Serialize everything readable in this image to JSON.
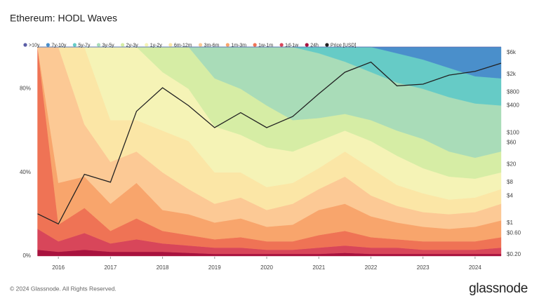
{
  "chart_data": {
    "type": "stacked_area",
    "title": "Ethereum: HODL Waves",
    "x": [
      2015.6,
      2016.0,
      2016.5,
      2017.0,
      2017.5,
      2018.0,
      2018.5,
      2019.0,
      2019.5,
      2020.0,
      2020.5,
      2021.0,
      2021.5,
      2022.0,
      2022.5,
      2023.0,
      2023.5,
      2024.0,
      2024.5
    ],
    "xlim": [
      2015.58,
      2024.5
    ],
    "xticks": [
      2016,
      2017,
      2018,
      2019,
      2020,
      2021,
      2022,
      2023,
      2024
    ],
    "ylim": [
      0,
      100
    ],
    "yticks": [
      {
        "value": 0,
        "label": "0%"
      },
      {
        "value": 40,
        "label": "40%"
      },
      {
        "value": 80,
        "label": "80%"
      }
    ],
    "y2scale": "log",
    "y2lim": [
      0.185,
      8000
    ],
    "y2ticks": [
      {
        "value": 0.2,
        "label": "$0.20"
      },
      {
        "value": 0.6,
        "label": "$0.60"
      },
      {
        "value": 1,
        "label": "$1"
      },
      {
        "value": 4,
        "label": "$4"
      },
      {
        "value": 8,
        "label": "$8"
      },
      {
        "value": 20,
        "label": "$20"
      },
      {
        "value": 60,
        "label": "$60"
      },
      {
        "value": 100,
        "label": "$100"
      },
      {
        "value": 400,
        "label": "$400"
      },
      {
        "value": 800,
        "label": "$800"
      },
      {
        "value": 2000,
        "label": "$2k"
      },
      {
        "value": 6000,
        "label": "$6k"
      }
    ],
    "series": [
      {
        "name": ">10y",
        "color": "#5b5ea6",
        "values": [
          0,
          0,
          0,
          0,
          0,
          0,
          0,
          0,
          0,
          0,
          0,
          0,
          0,
          0,
          0,
          0,
          0,
          0,
          0
        ]
      },
      {
        "name": "7y-10y",
        "color": "#4a8fcb",
        "values": [
          0,
          0,
          0,
          0,
          0,
          0,
          0,
          0,
          0,
          0,
          0,
          0,
          0,
          0,
          3,
          6,
          10,
          14,
          15
        ]
      },
      {
        "name": "5y-7y",
        "color": "#66cbc6",
        "values": [
          0,
          0,
          0,
          0,
          0,
          0,
          0,
          0,
          0,
          0,
          0,
          3,
          7,
          12,
          14,
          14,
          14,
          13,
          13
        ]
      },
      {
        "name": "3y-5y",
        "color": "#a9dcb8",
        "values": [
          0,
          0,
          0,
          0,
          0,
          0,
          0,
          15,
          20,
          28,
          35,
          31,
          25,
          23,
          23,
          24,
          26,
          26,
          22
        ]
      },
      {
        "name": "2y-3y",
        "color": "#d6eda5",
        "values": [
          0,
          0,
          0,
          0,
          0,
          12,
          20,
          23,
          22,
          20,
          15,
          11,
          8,
          10,
          12,
          14,
          12,
          10,
          10
        ]
      },
      {
        "name": "1y-2y",
        "color": "#f5f3b6",
        "values": [
          0,
          0,
          0,
          35,
          35,
          28,
          25,
          22,
          18,
          19,
          15,
          13,
          10,
          13,
          14,
          12,
          11,
          9,
          8
        ]
      },
      {
        "name": "6m-12m",
        "color": "#fbe6a6",
        "values": [
          0,
          0,
          37,
          20,
          15,
          20,
          23,
          15,
          12,
          11,
          10,
          10,
          12,
          13,
          10,
          9,
          7,
          7,
          7
        ]
      },
      {
        "name": "3m-6m",
        "color": "#fcc995",
        "values": [
          0,
          65,
          25,
          20,
          15,
          18,
          12,
          9,
          10,
          8,
          10,
          10,
          13,
          10,
          8,
          7,
          7,
          7,
          8
        ]
      },
      {
        "name": "1m-3m",
        "color": "#f8a56c",
        "values": [
          0,
          20,
          15,
          13,
          17,
          10,
          10,
          8,
          9,
          7,
          8,
          12,
          13,
          10,
          8,
          7,
          6,
          7,
          8
        ]
      },
      {
        "name": "1w-1m",
        "color": "#ef7355",
        "values": [
          87,
          8,
          12,
          6,
          10,
          6,
          5,
          4,
          5,
          4,
          4,
          6,
          7,
          5,
          4,
          4,
          4,
          4,
          5
        ]
      },
      {
        "name": "1d-1w",
        "color": "#d8465a",
        "values": [
          10,
          5,
          8,
          4,
          6,
          4,
          3.5,
          3,
          3,
          2,
          2,
          3,
          3.5,
          3,
          3,
          2,
          2,
          2,
          3
        ]
      },
      {
        "name": "24h",
        "color": "#a8123e",
        "values": [
          3,
          2,
          3,
          2,
          2,
          2,
          1.5,
          1,
          1,
          1,
          1,
          1,
          1.5,
          1,
          1,
          1,
          1,
          1,
          1
        ]
      },
      {
        "name": "Price [USD]",
        "color": "#222222",
        "axis": "y2",
        "values": [
          1.6,
          0.95,
          12,
          8,
          300,
          1000,
          400,
          130,
          280,
          130,
          230,
          730,
          2200,
          3700,
          1100,
          1200,
          1900,
          2300,
          3500
        ]
      }
    ]
  },
  "footer": "© 2024 Glassnode. All Rights Reserved.",
  "logo": "glassnode"
}
